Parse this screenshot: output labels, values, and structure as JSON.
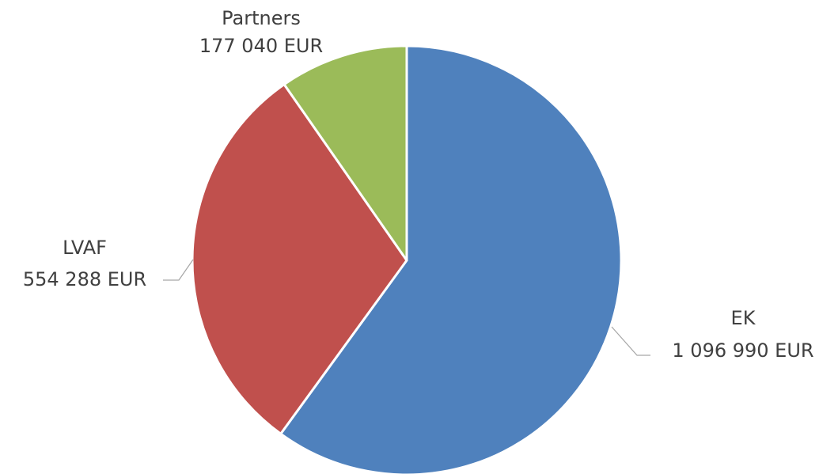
{
  "chart_data": {
    "type": "pie",
    "title": "",
    "slices": [
      {
        "label": "EK",
        "value": 1096990,
        "value_label": "1 096 990 EUR",
        "color": "#4f81bd"
      },
      {
        "label": "LVAF",
        "value": 554288,
        "value_label": "554 288 EUR",
        "color": "#c0504d"
      },
      {
        "label": "Partners",
        "value": 177040,
        "value_label": "177 040 EUR",
        "color": "#9bbb59"
      }
    ],
    "start_angle": "12 o'clock",
    "direction": "clockwise",
    "legend": "none",
    "data_labels": "outside with leader lines"
  }
}
